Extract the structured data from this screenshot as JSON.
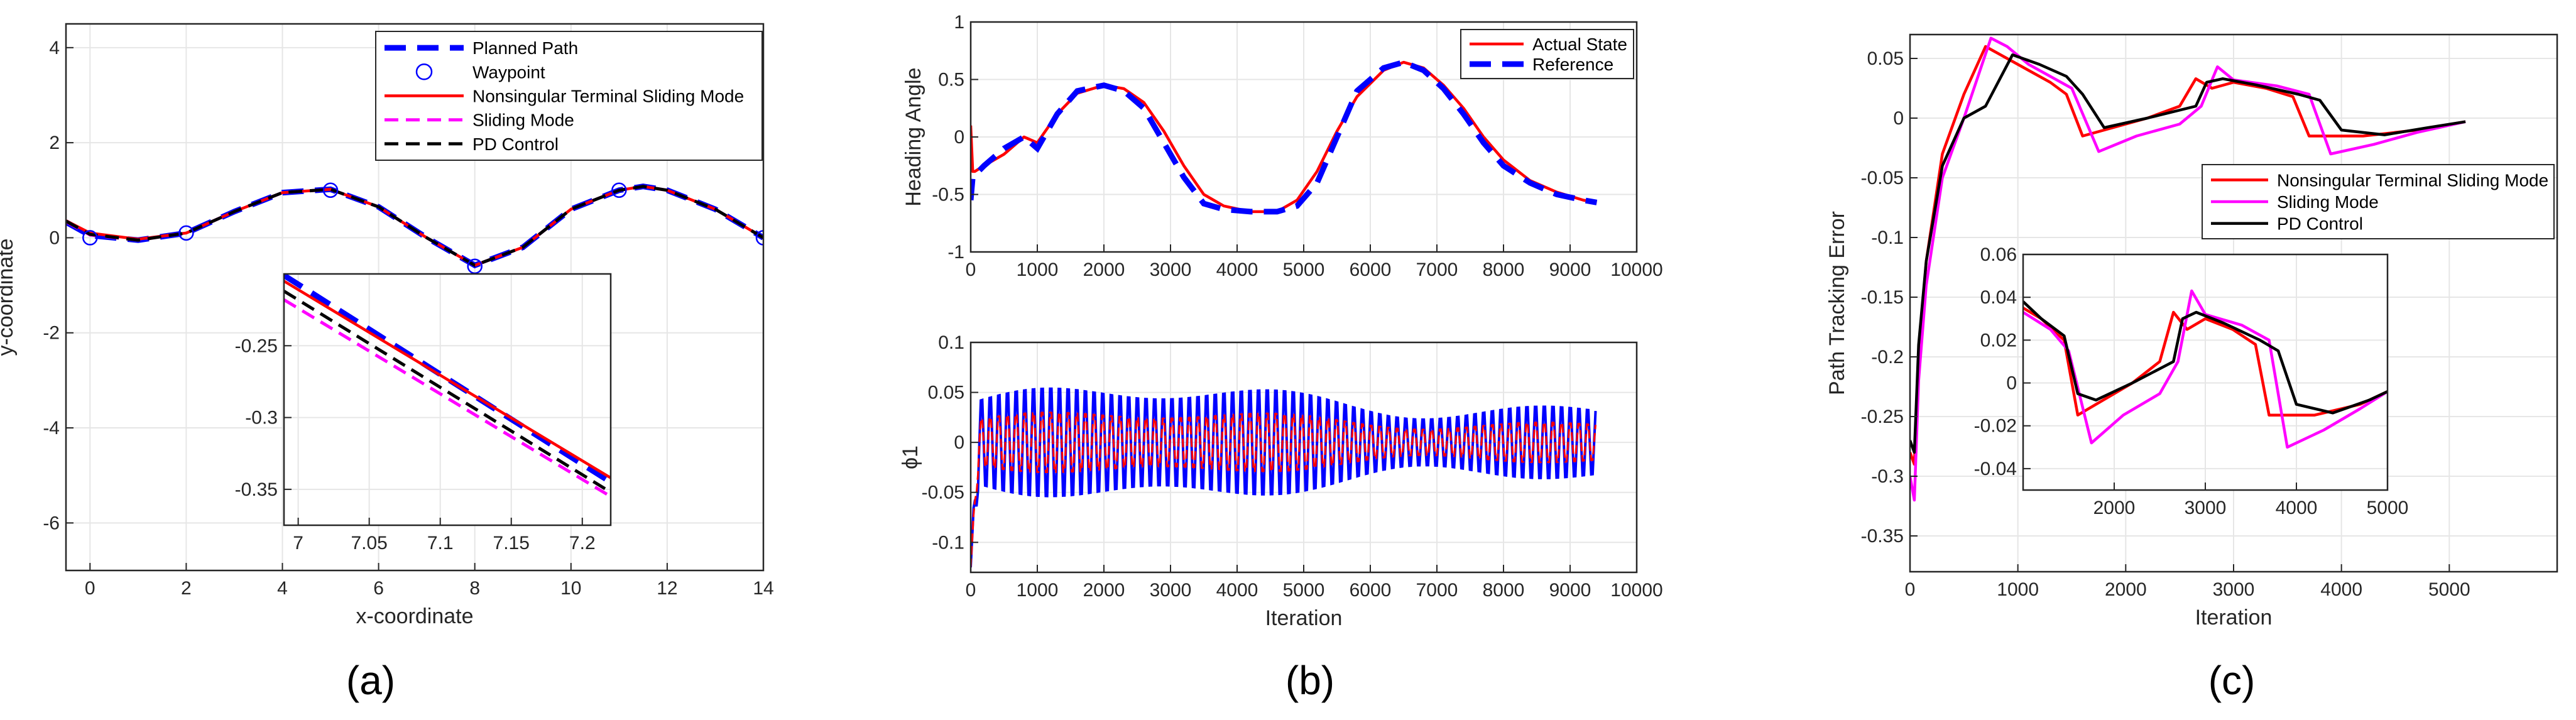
{
  "panel_labels": [
    "(a)",
    "(b)",
    "(c)"
  ],
  "colors": {
    "planned": "#0000ff",
    "waypoint": "#0000ff",
    "ntsm": "#ff0000",
    "sliding": "#ff00ff",
    "pd": "#000000",
    "grid": "#e6e6e6",
    "axis": "#262626"
  },
  "chart_data": [
    {
      "id": "a-main",
      "type": "line",
      "xlabel": "x-coordinate",
      "ylabel": "y-coordinate",
      "xlim": [
        -0.5,
        14
      ],
      "ylim": [
        -7,
        4.5
      ],
      "xticks": [
        0,
        2,
        4,
        6,
        8,
        10,
        12,
        14
      ],
      "yticks": [
        -6,
        -4,
        -2,
        0,
        2,
        4
      ],
      "waypoints": {
        "x": [
          0,
          2,
          5,
          8,
          11,
          14
        ],
        "y": [
          0,
          0.1,
          1.0,
          -0.6,
          1.0,
          0
        ]
      },
      "series": [
        {
          "name": "Planned Path",
          "color": "#0000ff",
          "style": "thick-dash",
          "x": [
            -0.5,
            0,
            1,
            2,
            3,
            4,
            5,
            6,
            7,
            8,
            9,
            10,
            11,
            11.5,
            12,
            13,
            14
          ],
          "y": [
            0.33,
            0.05,
            -0.05,
            0.1,
            0.55,
            0.95,
            1.02,
            0.65,
            0.0,
            -0.58,
            -0.2,
            0.6,
            1.0,
            1.08,
            1.0,
            0.6,
            0.0
          ]
        },
        {
          "name": "Nonsingular Terminal Sliding Mode",
          "color": "#ff0000",
          "style": "solid",
          "x": [
            -0.5,
            0,
            1,
            2,
            3,
            4,
            5,
            6,
            7,
            8,
            9,
            10,
            11,
            11.5,
            12,
            13,
            14
          ],
          "y": [
            0.36,
            0.1,
            -0.03,
            0.1,
            0.55,
            0.95,
            1.02,
            0.65,
            0.0,
            -0.58,
            -0.2,
            0.6,
            1.0,
            1.08,
            1.0,
            0.6,
            0.0
          ]
        },
        {
          "name": "Sliding Mode",
          "color": "#ff00ff",
          "style": "dash",
          "x": [
            -0.5,
            0,
            1,
            2,
            3,
            4,
            5,
            6,
            7,
            8,
            9,
            10,
            11,
            11.5,
            12,
            13,
            14
          ],
          "y": [
            0.34,
            0.06,
            -0.05,
            0.1,
            0.55,
            0.95,
            1.02,
            0.65,
            0.0,
            -0.58,
            -0.2,
            0.6,
            1.0,
            1.08,
            1.0,
            0.6,
            0.0
          ]
        },
        {
          "name": "PD Control",
          "color": "#000000",
          "style": "dash",
          "x": [
            -0.5,
            0,
            1,
            2,
            3,
            4,
            5,
            6,
            7,
            8,
            9,
            10,
            11,
            11.5,
            12,
            13,
            14
          ],
          "y": [
            0.35,
            0.07,
            -0.05,
            0.1,
            0.55,
            0.95,
            1.02,
            0.65,
            0.0,
            -0.58,
            -0.2,
            0.6,
            1.0,
            1.08,
            1.0,
            0.6,
            0.0
          ]
        }
      ],
      "legend": [
        "Planned Path",
        "Waypoint",
        "Nonsingular Terminal Sliding Mode",
        "Sliding Mode",
        "PD Control"
      ],
      "legend_location": "top-right"
    },
    {
      "id": "a-inset",
      "type": "line",
      "xlim": [
        6.99,
        7.22
      ],
      "ylim": [
        -0.375,
        -0.2
      ],
      "xticks": [
        7,
        7.05,
        7.1,
        7.15,
        7.2
      ],
      "xticklabels": [
        "7",
        "7.05",
        "7.1",
        "7.15",
        "7.2"
      ],
      "yticks": [
        -0.25,
        -0.3,
        -0.35
      ],
      "yticklabels": [
        "-0.25",
        "-0.3",
        "-0.35"
      ],
      "series": [
        {
          "name": "Planned Path",
          "color": "#0000ff",
          "style": "thick-dash",
          "x": [
            6.99,
            7.22
          ],
          "y": [
            -0.201,
            -0.345
          ]
        },
        {
          "name": "Nonsingular Terminal Sliding Mode",
          "color": "#ff0000",
          "style": "solid",
          "x": [
            6.99,
            7.22
          ],
          "y": [
            -0.205,
            -0.342
          ]
        },
        {
          "name": "Sliding Mode",
          "color": "#ff00ff",
          "style": "dash",
          "x": [
            6.99,
            7.22
          ],
          "y": [
            -0.218,
            -0.355
          ]
        },
        {
          "name": "PD Control",
          "color": "#000000",
          "style": "dash",
          "x": [
            6.99,
            7.22
          ],
          "y": [
            -0.212,
            -0.352
          ]
        }
      ]
    },
    {
      "id": "b-top",
      "type": "line",
      "ylabel": "Heading Angle",
      "xlim": [
        0,
        10000
      ],
      "ylim": [
        -1,
        1
      ],
      "xticks": [
        0,
        1000,
        2000,
        3000,
        4000,
        5000,
        6000,
        7000,
        8000,
        9000,
        10000
      ],
      "yticks": [
        -1,
        -0.5,
        0,
        0.5,
        1
      ],
      "series": [
        {
          "name": "Actual State",
          "color": "#ff0000",
          "style": "solid",
          "x": [
            0,
            30,
            60,
            200,
            500,
            800,
            1000,
            1300,
            1600,
            2000,
            2300,
            2600,
            2900,
            3200,
            3500,
            3800,
            4200,
            4600,
            4900,
            5200,
            5500,
            5800,
            6200,
            6500,
            6800,
            7100,
            7400,
            7700,
            8000,
            8400,
            8800,
            9200,
            9400
          ],
          "y": [
            0.1,
            -0.3,
            -0.3,
            -0.25,
            -0.15,
            0.0,
            -0.05,
            0.2,
            0.38,
            0.45,
            0.42,
            0.3,
            0.05,
            -0.25,
            -0.5,
            -0.6,
            -0.65,
            -0.65,
            -0.55,
            -0.3,
            0.05,
            0.35,
            0.58,
            0.65,
            0.6,
            0.45,
            0.25,
            0.0,
            -0.2,
            -0.38,
            -0.48,
            -0.55,
            -0.57
          ]
        },
        {
          "name": "Reference",
          "color": "#0000ff",
          "style": "thick-dash",
          "x": [
            0,
            30,
            200,
            500,
            800,
            1000,
            1300,
            1600,
            2000,
            2300,
            2600,
            2900,
            3200,
            3500,
            3800,
            4200,
            4600,
            4900,
            5200,
            5500,
            5800,
            6200,
            6500,
            6800,
            7100,
            7400,
            7700,
            8000,
            8400,
            8800,
            9200,
            9400
          ],
          "y": [
            -0.55,
            -0.35,
            -0.25,
            -0.1,
            0.0,
            -0.1,
            0.2,
            0.4,
            0.45,
            0.4,
            0.25,
            -0.05,
            -0.35,
            -0.58,
            -0.63,
            -0.65,
            -0.65,
            -0.6,
            -0.4,
            0.0,
            0.4,
            0.6,
            0.65,
            0.58,
            0.42,
            0.2,
            -0.05,
            -0.25,
            -0.4,
            -0.5,
            -0.55,
            -0.57
          ]
        }
      ],
      "legend": [
        "Actual State",
        "Reference"
      ],
      "legend_location": "top-right"
    },
    {
      "id": "b-bottom",
      "type": "line",
      "xlabel": "Iteration",
      "ylabel": "ϕ1",
      "xlim": [
        0,
        10000
      ],
      "ylim": [
        -0.13,
        0.1
      ],
      "xticks": [
        0,
        1000,
        2000,
        3000,
        4000,
        5000,
        6000,
        7000,
        8000,
        9000,
        10000
      ],
      "yticks": [
        -0.1,
        -0.05,
        0,
        0.05,
        0.1
      ],
      "oscillation": {
        "x_end": 9400,
        "period": 130,
        "amp_blue": 0.045,
        "amp_red": 0.025,
        "initial_min": -0.125
      },
      "series": [
        {
          "name": "Reference",
          "color": "#0000ff",
          "style": "dash"
        },
        {
          "name": "Actual State",
          "color": "#ff0000",
          "style": "dash"
        }
      ]
    },
    {
      "id": "c-main",
      "type": "line",
      "xlabel": "Iteration",
      "ylabel": "Path Tracking Error",
      "xlim": [
        0,
        6000
      ],
      "ylim": [
        -0.38,
        0.07
      ],
      "xticks": [
        0,
        1000,
        2000,
        3000,
        4000,
        5000
      ],
      "yticks": [
        -0.35,
        -0.3,
        -0.25,
        -0.2,
        -0.15,
        -0.1,
        -0.05,
        0,
        0.05
      ],
      "series": [
        {
          "name": "Nonsingular Terminal Sliding Mode",
          "color": "#ff0000",
          "style": "solid",
          "x": [
            0,
            40,
            80,
            150,
            300,
            500,
            700,
            900,
            1100,
            1300,
            1450,
            1600,
            1800,
            2200,
            2500,
            2650,
            2800,
            3000,
            3300,
            3550,
            3700,
            4200,
            4700,
            5150
          ],
          "y": [
            -0.28,
            -0.29,
            -0.2,
            -0.12,
            -0.03,
            0.02,
            0.06,
            0.05,
            0.04,
            0.03,
            0.02,
            -0.015,
            -0.01,
            0.0,
            0.01,
            0.033,
            0.025,
            0.03,
            0.025,
            0.018,
            -0.015,
            -0.015,
            -0.01,
            -0.003
          ]
        },
        {
          "name": "Sliding Mode",
          "color": "#ff00ff",
          "style": "solid",
          "x": [
            0,
            40,
            80,
            150,
            300,
            500,
            750,
            900,
            1100,
            1300,
            1500,
            1750,
            2100,
            2500,
            2700,
            2850,
            3000,
            3400,
            3700,
            3900,
            4300,
            4700,
            5150
          ],
          "y": [
            -0.3,
            -0.32,
            -0.22,
            -0.14,
            -0.05,
            0.0,
            0.067,
            0.06,
            0.045,
            0.035,
            0.025,
            -0.028,
            -0.015,
            -0.005,
            0.01,
            0.043,
            0.032,
            0.027,
            0.02,
            -0.03,
            -0.022,
            -0.012,
            -0.003
          ]
        },
        {
          "name": "PD Control",
          "color": "#000000",
          "style": "solid",
          "x": [
            0,
            40,
            80,
            150,
            300,
            500,
            700,
            950,
            1200,
            1450,
            1600,
            1800,
            2200,
            2650,
            2750,
            2900,
            3200,
            3600,
            3800,
            4000,
            4400,
            4800,
            5150
          ],
          "y": [
            -0.27,
            -0.28,
            -0.19,
            -0.12,
            -0.04,
            0.0,
            0.01,
            0.053,
            0.045,
            0.035,
            0.02,
            -0.008,
            0.0,
            0.01,
            0.03,
            0.033,
            0.028,
            0.02,
            0.015,
            -0.01,
            -0.014,
            -0.008,
            -0.003
          ]
        }
      ],
      "legend": [
        "Nonsingular Terminal Sliding Mode",
        "Sliding Mode",
        "PD Control"
      ],
      "legend_location": "upper-right"
    },
    {
      "id": "c-inset",
      "type": "line",
      "xlim": [
        1000,
        5000
      ],
      "ylim": [
        -0.05,
        0.06
      ],
      "xticks": [
        2000,
        3000,
        4000,
        5000
      ],
      "yticks": [
        -0.04,
        -0.02,
        0,
        0.02,
        0.04,
        0.06
      ],
      "series": [
        {
          "name": "Nonsingular Terminal Sliding Mode",
          "color": "#ff0000",
          "style": "solid",
          "x": [
            1000,
            1200,
            1450,
            1600,
            1800,
            2200,
            2500,
            2650,
            2800,
            3000,
            3300,
            3550,
            3700,
            4200,
            4700,
            5000
          ],
          "y": [
            0.035,
            0.03,
            0.02,
            -0.015,
            -0.01,
            0.0,
            0.01,
            0.033,
            0.025,
            0.03,
            0.025,
            0.018,
            -0.015,
            -0.015,
            -0.01,
            -0.004
          ]
        },
        {
          "name": "Sliding Mode",
          "color": "#ff00ff",
          "style": "solid",
          "x": [
            1000,
            1300,
            1500,
            1750,
            2100,
            2500,
            2700,
            2850,
            3000,
            3400,
            3700,
            3900,
            4300,
            4700,
            5000
          ],
          "y": [
            0.033,
            0.025,
            0.015,
            -0.028,
            -0.015,
            -0.005,
            0.01,
            0.043,
            0.032,
            0.027,
            0.02,
            -0.03,
            -0.022,
            -0.012,
            -0.004
          ]
        },
        {
          "name": "PD Control",
          "color": "#000000",
          "style": "solid",
          "x": [
            1000,
            1200,
            1450,
            1600,
            1800,
            2200,
            2650,
            2750,
            2900,
            3200,
            3600,
            3800,
            4000,
            4400,
            4800,
            5000
          ],
          "y": [
            0.038,
            0.03,
            0.022,
            -0.005,
            -0.008,
            0.0,
            0.01,
            0.03,
            0.033,
            0.028,
            0.02,
            0.015,
            -0.01,
            -0.014,
            -0.008,
            -0.004
          ]
        }
      ]
    }
  ]
}
